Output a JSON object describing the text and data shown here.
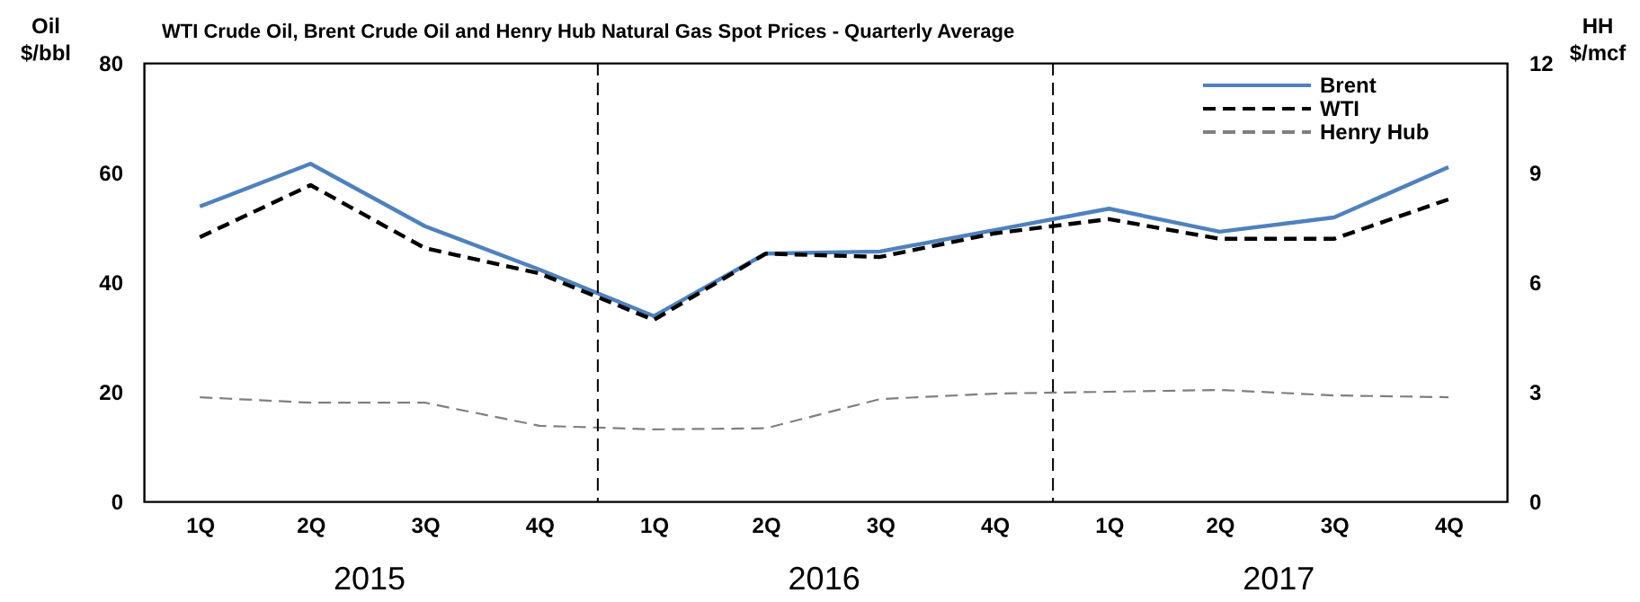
{
  "chart_data": {
    "type": "line",
    "title": "WTI Crude Oil, Brent Crude Oil and Henry Hub Natural Gas Spot Prices - Quarterly Average",
    "ylabel": "Oil $/bbl",
    "y2label": "HH $/mcf",
    "x": [
      "2015-02-15",
      "2015-05-15",
      "2015-08-15",
      "2015-11-15",
      "2016-02-15",
      "2016-05-15",
      "2016-08-15",
      "2016-11-15",
      "2017-02-15",
      "2017-05-15",
      "2017-08-15",
      "2017-11-15"
    ],
    "xlim": [
      "2015-01-01",
      "2018-01-01"
    ],
    "xticks": [
      {
        "value": "2015-02-15",
        "label": "1Q"
      },
      {
        "value": "2015-05-15",
        "label": "2Q"
      },
      {
        "value": "2015-08-15",
        "label": "3Q"
      },
      {
        "value": "2015-11-15",
        "label": "4Q"
      },
      {
        "value": "2016-02-15",
        "label": "1Q"
      },
      {
        "value": "2016-05-15",
        "label": "2Q"
      },
      {
        "value": "2016-08-15",
        "label": "3Q"
      },
      {
        "value": "2016-11-15",
        "label": "4Q"
      },
      {
        "value": "2017-02-15",
        "label": "1Q"
      },
      {
        "value": "2017-05-15",
        "label": "2Q"
      },
      {
        "value": "2017-08-15",
        "label": "3Q"
      },
      {
        "value": "2017-11-15",
        "label": "4Q"
      }
    ],
    "ylim": [
      0,
      80
    ],
    "yticks": [
      0,
      20,
      40,
      60,
      80
    ],
    "y2lim": [
      0,
      12
    ],
    "y2ticks": [
      0,
      3,
      6,
      9,
      12
    ],
    "series": [
      {
        "name": "Brent",
        "color": "#4f81bd",
        "line_style": "solid",
        "values": [
          53.8,
          61.6,
          50.2,
          42.3,
          33.8,
          45.2,
          45.6,
          49.5,
          53.4,
          49.2,
          51.8,
          61.0
        ]
      },
      {
        "name": "WTI",
        "color": "#000000",
        "line_style": "dashed",
        "values": [
          48.2,
          57.7,
          46.2,
          41.6,
          33.1,
          45.2,
          44.6,
          48.9,
          51.5,
          47.9,
          47.9,
          55.1
        ]
      },
      {
        "name": "Henry Hub",
        "color": "#7f7f7f",
        "line_style": "dashed",
        "axis": "y2",
        "values": [
          2.85,
          2.7,
          2.7,
          2.07,
          1.97,
          2.0,
          2.8,
          2.95,
          3.0,
          3.05,
          2.9,
          2.85
        ]
      }
    ],
    "ref_lines": [
      {
        "axis": "x",
        "value": "2016-01-01",
        "line_style": "dashed"
      },
      {
        "axis": "x",
        "value": "2017-01-01",
        "line_style": "dashed"
      }
    ],
    "annotations": [
      "2015",
      "2016",
      "2017"
    ],
    "grid": false,
    "legend": "top right"
  }
}
